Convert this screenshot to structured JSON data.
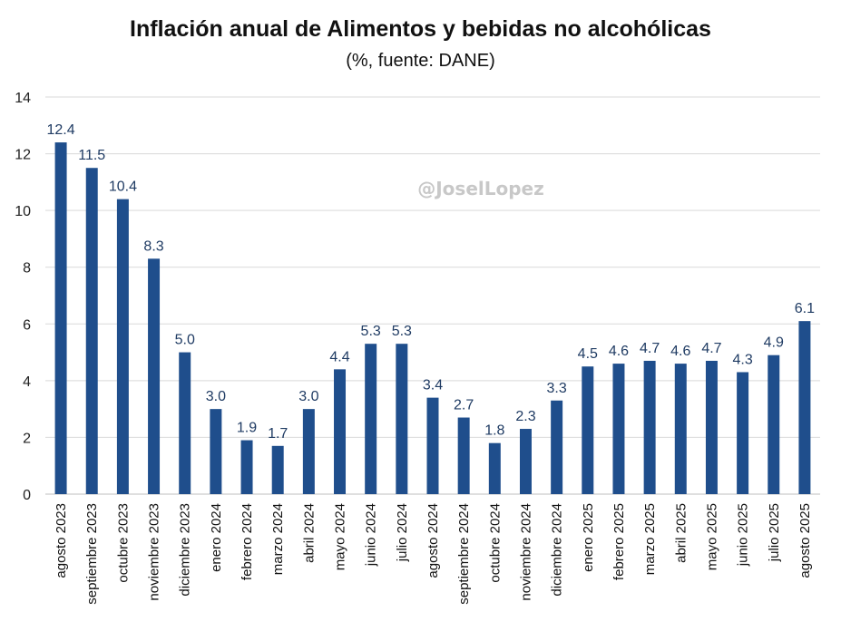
{
  "watermark": "@JoselLopez",
  "chart_data": {
    "type": "bar",
    "title": "Inflación anual de Alimentos y bebidas no alcohólicas",
    "subtitle": "(%, fuente: DANE)",
    "categories": [
      "agosto 2023",
      "septiembre 2023",
      "octubre 2023",
      "noviembre 2023",
      "diciembre 2023",
      "enero 2024",
      "febrero 2024",
      "marzo 2024",
      "abril 2024",
      "mayo 2024",
      "junio 2024",
      "julio 2024",
      "agosto 2024",
      "septiembre 2024",
      "octubre 2024",
      "noviembre 2024",
      "diciembre 2024",
      "enero 2025",
      "febrero 2025",
      "marzo 2025",
      "abril 2025",
      "mayo 2025",
      "junio 2025",
      "julio 2025",
      "agosto 2025"
    ],
    "values": [
      12.4,
      11.5,
      10.4,
      8.3,
      5.0,
      3.0,
      1.9,
      1.7,
      3.0,
      4.4,
      5.3,
      5.3,
      3.4,
      2.7,
      1.8,
      2.3,
      3.3,
      4.5,
      4.6,
      4.7,
      4.6,
      4.7,
      4.3,
      4.9,
      6.1
    ],
    "data_labels": [
      "12.4",
      "11.5",
      "10.4",
      "8.3",
      "5.0",
      "3.0",
      "1.9",
      "1.7",
      "3.0",
      "4.4",
      "5.3",
      "5.3",
      "3.4",
      "2.7",
      "1.8",
      "2.3",
      "3.3",
      "4.5",
      "4.6",
      "4.7",
      "4.6",
      "4.7",
      "4.3",
      "4.9",
      "6.1"
    ],
    "ylim": [
      0,
      14
    ],
    "yticks": [
      0,
      2,
      4,
      6,
      8,
      10,
      12,
      14
    ],
    "grid": true,
    "legend": "none",
    "xlabel": "",
    "ylabel": "",
    "bar_color": "#1f4e8c"
  }
}
